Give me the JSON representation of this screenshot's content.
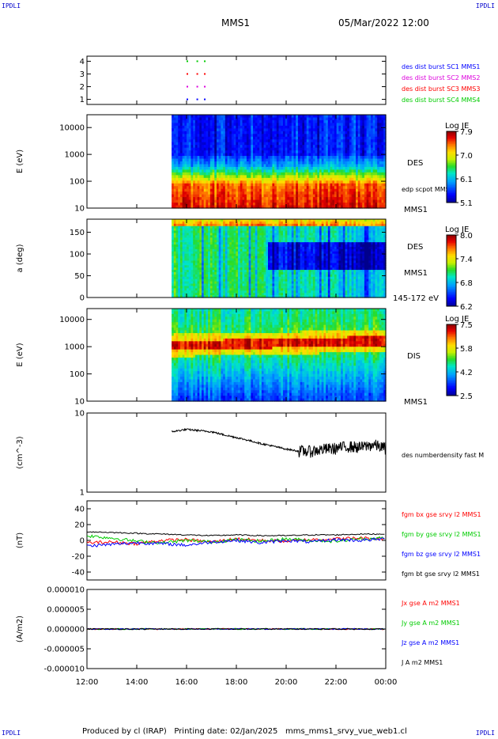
{
  "header": {
    "corner_label": "IPDLI",
    "title": "MMS1",
    "datetime": "05/Mar/2022 12:00"
  },
  "footer": {
    "produced_by": "Produced by cl (IRAP)",
    "printing_date": "Printing date: 02/Jan/2025",
    "filename": "mms_mms1_srvy_vue_web1.cl"
  },
  "x_axis": {
    "ticks": [
      "12:00",
      "14:00",
      "16:00",
      "18:00",
      "20:00",
      "22:00",
      "00:00"
    ],
    "range_hours": [
      12,
      24
    ]
  },
  "colors": {
    "red": "#ff0000",
    "green": "#00cc00",
    "blue": "#0000ff",
    "magenta": "#dd00dd",
    "black": "#000000"
  },
  "chart_data": [
    {
      "type": "scatter",
      "panel": "burst-availability",
      "ylabel": "",
      "yticks": [
        "1",
        "2",
        "3",
        "4"
      ],
      "ylim": [
        0.6,
        4.4
      ],
      "series": [
        {
          "name": "des dist burst SC1 MMS1",
          "color": "#0000ff",
          "y": 1,
          "x_hours": [
            16.0,
            16.4,
            16.7
          ]
        },
        {
          "name": "des dist burst SC2 MMS2",
          "color": "#dd00dd",
          "y": 2,
          "x_hours": [
            16.0,
            16.4,
            16.7
          ]
        },
        {
          "name": "des dist burst SC3 MMS3",
          "color": "#ff0000",
          "y": 3,
          "x_hours": [
            16.0,
            16.4,
            16.7
          ]
        },
        {
          "name": "des dist burst SC4 MMS4",
          "color": "#00cc00",
          "y": 4,
          "x_hours": [
            16.0,
            16.4,
            16.7
          ]
        }
      ]
    },
    {
      "type": "heatmap",
      "panel": "des-energy",
      "ylabel": "E (eV)",
      "yscale": "log",
      "ylim": [
        10,
        30000
      ],
      "yticks": [
        "10",
        "100",
        "1000",
        "10000"
      ],
      "data_start_hours": 15.4,
      "instrument": "DES",
      "overlay_label": "edp scpot MMS1",
      "spacecraft": "MMS1",
      "colorbar": {
        "title": "Log JE",
        "ticks": [
          "7.9",
          "7.0",
          "6.1",
          "5.1"
        ],
        "range": [
          5.1,
          7.9
        ]
      }
    },
    {
      "type": "heatmap",
      "panel": "des-pitch-angle",
      "ylabel": "a (deg)",
      "ylim": [
        0,
        180
      ],
      "yticks": [
        "0",
        "50",
        "100",
        "150"
      ],
      "data_start_hours": 15.4,
      "instrument": "DES",
      "spacecraft": "MMS1",
      "energy_range": "145-172 eV",
      "colorbar": {
        "title": "Log JE",
        "ticks": [
          "8.0",
          "7.4",
          "6.8",
          "6.2"
        ],
        "range": [
          6.2,
          8.0
        ]
      }
    },
    {
      "type": "heatmap",
      "panel": "dis-energy",
      "ylabel": "E (eV)",
      "yscale": "log",
      "ylim": [
        10,
        25000
      ],
      "yticks": [
        "10",
        "100",
        "1000",
        "10000"
      ],
      "data_start_hours": 15.4,
      "instrument": "DIS",
      "spacecraft": "MMS1",
      "colorbar": {
        "title": "Log JE",
        "ticks": [
          "7.5",
          "5.8",
          "4.2",
          "2.5"
        ],
        "range": [
          2.5,
          7.5
        ]
      }
    },
    {
      "type": "line",
      "panel": "density",
      "ylabel": "(cm^-3)",
      "yscale": "log",
      "ylim": [
        1,
        10
      ],
      "yticks": [
        "1",
        "10"
      ],
      "series": [
        {
          "name": "des numberdensity fast M",
          "color": "#000000",
          "x_hours": [
            15.4,
            16.0,
            16.5,
            17.0,
            17.5,
            18.0,
            18.5,
            19.0,
            19.5,
            20.0,
            20.5,
            21.0,
            21.5,
            22.0,
            22.5,
            23.0,
            23.5,
            24.0
          ],
          "y": [
            5.8,
            6.2,
            6.0,
            5.8,
            5.3,
            4.9,
            4.5,
            4.1,
            3.8,
            3.5,
            3.3,
            3.3,
            3.5,
            3.6,
            3.8,
            3.7,
            4.0,
            3.6
          ]
        }
      ]
    },
    {
      "type": "line",
      "panel": "magnetic-field",
      "ylabel": "(nT)",
      "ylim": [
        -50,
        50
      ],
      "yticks": [
        "-40",
        "-20",
        "0",
        "20",
        "40"
      ],
      "series": [
        {
          "name": "fgm bx gse srvy l2 MMS1",
          "color": "#ff0000",
          "x_hours": [
            12,
            13,
            14,
            15,
            16,
            17,
            18,
            19,
            20,
            21,
            22,
            23,
            24
          ],
          "y": [
            -3,
            -2,
            -4,
            0,
            1,
            -2,
            2,
            0,
            -1,
            1,
            2,
            3,
            2
          ]
        },
        {
          "name": "fgm by gse srvy l2 MMS1",
          "color": "#00cc00",
          "x_hours": [
            12,
            13,
            14,
            15,
            16,
            17,
            18,
            19,
            20,
            21,
            22,
            23,
            24
          ],
          "y": [
            6,
            3,
            -1,
            -3,
            0,
            -2,
            1,
            -1,
            2,
            0,
            -1,
            2,
            3
          ]
        },
        {
          "name": "fgm bz gse srvy l2 MMS1",
          "color": "#0000ff",
          "x_hours": [
            12,
            13,
            14,
            15,
            16,
            17,
            18,
            19,
            20,
            21,
            22,
            23,
            24
          ],
          "y": [
            -7,
            -5,
            -3,
            -4,
            -6,
            -2,
            0,
            -3,
            0,
            -2,
            1,
            0,
            2
          ]
        },
        {
          "name": "fgm bt gse srvy l2 MMS1",
          "color": "#000000",
          "x_hours": [
            12,
            13,
            14,
            15,
            16,
            17,
            18,
            19,
            20,
            21,
            22,
            23,
            24
          ],
          "y": [
            11,
            10,
            9,
            8,
            7,
            6,
            7,
            6,
            6,
            7,
            7,
            8,
            8
          ]
        }
      ]
    },
    {
      "type": "line",
      "panel": "current-density",
      "ylabel": "(A/m2)",
      "ylim": [
        -1e-05,
        1e-05
      ],
      "yticks": [
        "0.000010",
        "0.000005",
        "0.000000",
        "-0.000005",
        "-0.000010"
      ],
      "series": [
        {
          "name": "Jx gse A m2 MMS1",
          "color": "#ff0000",
          "x_hours": [
            12,
            24
          ],
          "y": [
            0,
            0
          ]
        },
        {
          "name": "Jy gse A m2 MMS1",
          "color": "#00cc00",
          "x_hours": [
            12,
            24
          ],
          "y": [
            0,
            0
          ]
        },
        {
          "name": "Jz gse A m2 MMS1",
          "color": "#0000ff",
          "x_hours": [
            12,
            24
          ],
          "y": [
            0,
            0
          ]
        },
        {
          "name": "J A m2 MMS1",
          "color": "#000000",
          "x_hours": [
            12,
            24
          ],
          "y": [
            0,
            0
          ]
        }
      ]
    }
  ]
}
